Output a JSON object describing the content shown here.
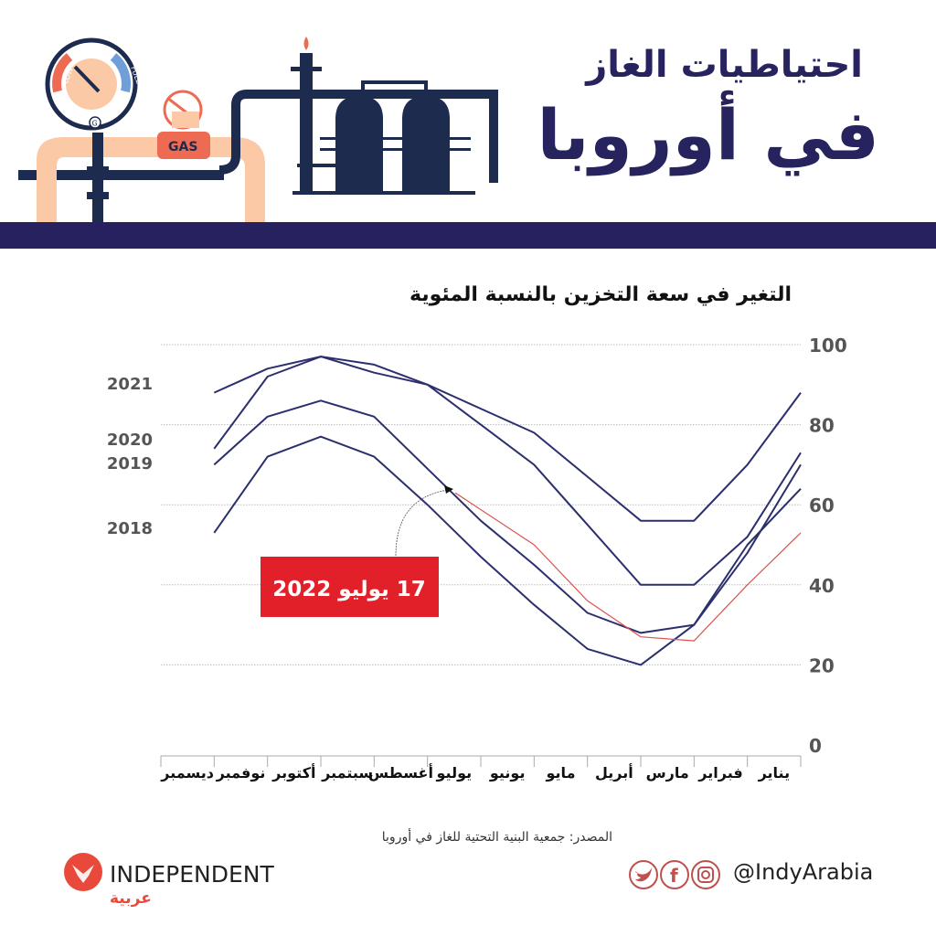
{
  "header": {
    "title_line1": "احتياطيات الغاز",
    "title_line2": "في أوروبا",
    "illustration": {
      "gauge_low_label": "LOW",
      "gauge_full_label": "FULL",
      "gauge_center_label": "G",
      "valve_label": "GAS"
    },
    "colors": {
      "navy": "#27215f",
      "peach": "#fbc9a6",
      "coral": "#ec6b52",
      "blue": "#6f9fd8",
      "dark_navy": "#1d2b4f"
    }
  },
  "chart_data": {
    "type": "line",
    "title": "التغير في سعة التخزين بالنسبة المئوية",
    "xlabel": "",
    "ylabel": "",
    "ylim": [
      0,
      100
    ],
    "yticks": [
      0,
      20,
      40,
      60,
      80,
      100
    ],
    "grid": true,
    "direction": "right-to-left",
    "categories": [
      "يناير",
      "فبراير",
      "مارس",
      "أبريل",
      "مايو",
      "يونيو",
      "يوليو",
      "أغسطس",
      "سبتمبر",
      "أكتوبر",
      "نوفمبر",
      "ديسمبر"
    ],
    "series": [
      {
        "name": "2018",
        "color": "#2b2f6e",
        "values": [
          64,
          50,
          30,
          20,
          24,
          35,
          47,
          60,
          72,
          77,
          72,
          53
        ]
      },
      {
        "name": "2019",
        "color": "#2b2f6e",
        "values": [
          70,
          48,
          30,
          28,
          33,
          45,
          56,
          69,
          82,
          86,
          82,
          70
        ]
      },
      {
        "name": "2020",
        "color": "#2b2f6e",
        "values": [
          73,
          52,
          40,
          40,
          55,
          70,
          80,
          90,
          95,
          97,
          92,
          74
        ]
      },
      {
        "name": "2021",
        "color": "#2b2f6e",
        "values": [
          88,
          70,
          56,
          56,
          67,
          78,
          84,
          90,
          93,
          97,
          94,
          88
        ]
      },
      {
        "name": "2022",
        "color": "#d9534f",
        "values": [
          53,
          40,
          26,
          27,
          36,
          50,
          63
        ]
      }
    ],
    "annotation": {
      "text": "17 يوليو 2022",
      "box_color": "#e2202a",
      "text_color": "#ffffff"
    },
    "legend_position": "left-inline-labels"
  },
  "footer": {
    "source": "المصدر: جمعية البنية التحتية للغاز في أوروبا",
    "brand_name": "INDEPENDENT",
    "brand_sub": "عربية",
    "brand_color": "#e8493a",
    "social_icons": [
      "twitter-icon",
      "facebook-icon",
      "instagram-icon"
    ],
    "handle": "@IndyArabia"
  }
}
